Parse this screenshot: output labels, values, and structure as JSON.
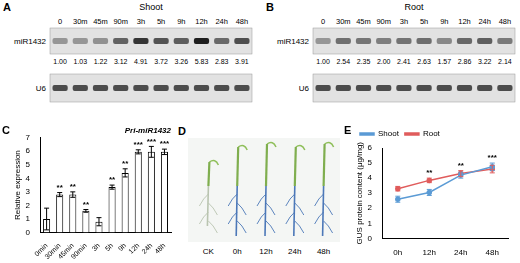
{
  "blots": [
    {
      "label": "A",
      "title": "Shoot",
      "lanes": [
        "0",
        "30m",
        "45m",
        "90m",
        "3h",
        "5h",
        "9h",
        "12h",
        "24h",
        "48h"
      ],
      "rows": [
        {
          "name": "miR1432",
          "values": [
            "1.00",
            "1.03",
            "1.22",
            "3.12",
            "4.91",
            "3.72",
            "3.26",
            "5.83",
            "2.83",
            "3.91"
          ]
        },
        {
          "name": "U6"
        }
      ]
    },
    {
      "label": "B",
      "title": "Root",
      "lanes": [
        "0",
        "30m",
        "45m",
        "90m",
        "3h",
        "5h",
        "9h",
        "12h",
        "24h",
        "48h"
      ],
      "rows": [
        {
          "name": "miR1432",
          "values": [
            "1.00",
            "2.54",
            "2.35",
            "2.00",
            "2.41",
            "2.63",
            "1.57",
            "2.86",
            "3.22",
            "2.14"
          ]
        },
        {
          "name": "U6"
        }
      ]
    }
  ],
  "chart_data": [
    {
      "label": "C",
      "type": "bar",
      "title": "Pri-miR1432",
      "categories": [
        "0min",
        "30min",
        "45min",
        "90min",
        "3h",
        "5h",
        "9h",
        "12h",
        "24h",
        "48h"
      ],
      "values": [
        1.0,
        2.8,
        2.8,
        1.6,
        0.8,
        3.35,
        4.4,
        5.95,
        5.95,
        5.95
      ],
      "errors": [
        0.8,
        0.15,
        0.2,
        0.1,
        0.3,
        0.15,
        0.3,
        0.15,
        0.4,
        0.2
      ],
      "annotations": [
        null,
        "**",
        "**",
        "**",
        null,
        "**",
        "**",
        "***",
        "***",
        "***"
      ],
      "color": "#ffffff",
      "y_label": "Relative expression",
      "ylim": [
        0,
        7
      ],
      "yticks": [
        0,
        1,
        2,
        3,
        4,
        5,
        6,
        7
      ],
      "grid": false
    },
    {
      "label": "E",
      "type": "line",
      "categories": [
        "0h",
        "12h",
        "24h",
        "48h"
      ],
      "series": [
        {
          "name": "Shoot",
          "color": "#5b9bd5",
          "values": [
            2.6,
            3.05,
            4.2,
            4.75
          ],
          "errors": [
            0.2,
            0.2,
            0.2,
            0.25
          ]
        },
        {
          "name": "Root",
          "color": "#e05c5c",
          "values": [
            3.3,
            3.85,
            4.3,
            4.6
          ],
          "errors": [
            0.15,
            0.15,
            0.2,
            0.25
          ]
        }
      ],
      "annotations": [
        null,
        "**",
        "**",
        "***"
      ],
      "y_label": "GUS protein content (μg/mg)",
      "ylim": [
        0,
        6
      ],
      "yticks": [
        0,
        1,
        2,
        3,
        4,
        5,
        6
      ],
      "legend": "top",
      "grid": false,
      "marker": "circle"
    }
  ],
  "photo": {
    "label": "D",
    "samples": [
      "CK",
      "0h",
      "12h",
      "24h",
      "48h"
    ]
  }
}
